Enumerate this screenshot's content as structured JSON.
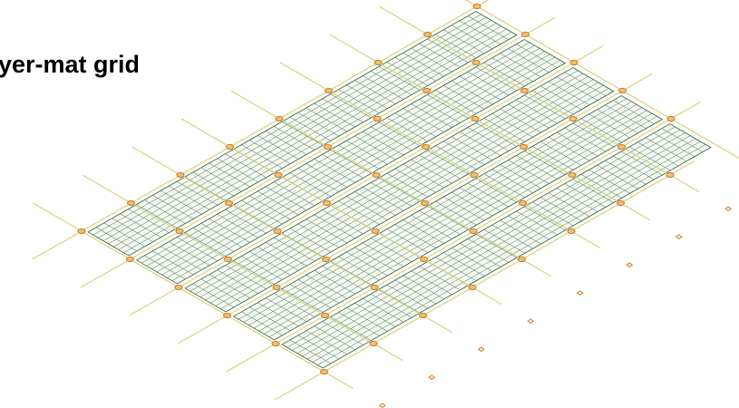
{
  "title": "yer-mat grid"
}
